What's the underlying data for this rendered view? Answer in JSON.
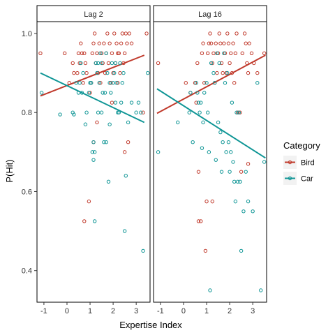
{
  "chart_data": {
    "type": "scatter",
    "xlabel": "Expertise Index",
    "ylabel": "P(Hit)",
    "xlim": [
      -1.3,
      3.6
    ],
    "ylim": [
      0.32,
      1.03
    ],
    "xticks": [
      -1,
      0,
      1,
      2,
      3
    ],
    "yticks": [
      0.4,
      0.6,
      0.8,
      1.0
    ],
    "ytick_labels": [
      "0.4",
      "0.6",
      "0.8",
      "1.0"
    ],
    "legend": {
      "title": "Category",
      "position": "right",
      "entries": [
        {
          "label": "Bird",
          "color": "#C0392B"
        },
        {
          "label": "Car",
          "color": "#0E9595"
        }
      ]
    },
    "panels": [
      {
        "strip": "Lag 2",
        "series": [
          {
            "name": "Bird",
            "color": "#C0392B",
            "fit": {
              "x": [
                -1.15,
                3.35
              ],
              "y": [
                0.842,
                0.945
              ]
            },
            "points": [
              [
                -1.15,
                0.95
              ],
              [
                -0.1,
                0.95
              ],
              [
                0.1,
                0.875
              ],
              [
                0.25,
                0.925
              ],
              [
                0.3,
                0.9
              ],
              [
                0.45,
                0.9
              ],
              [
                0.5,
                0.95
              ],
              [
                0.55,
                0.925
              ],
              [
                0.6,
                0.975
              ],
              [
                0.65,
                0.95
              ],
              [
                0.7,
                0.875
              ],
              [
                0.75,
                0.95
              ],
              [
                0.8,
                0.925
              ],
              [
                0.85,
                0.9
              ],
              [
                0.75,
                0.525
              ],
              [
                0.95,
                0.575
              ],
              [
                1.0,
                0.85
              ],
              [
                1.05,
                0.875
              ],
              [
                1.1,
                0.95
              ],
              [
                1.15,
                0.975
              ],
              [
                1.2,
                1.0
              ],
              [
                1.25,
                0.925
              ],
              [
                1.3,
                0.95
              ],
              [
                1.35,
                0.9
              ],
              [
                1.4,
                0.975
              ],
              [
                1.45,
                0.875
              ],
              [
                1.5,
                0.95
              ],
              [
                1.55,
                0.925
              ],
              [
                1.6,
                0.975
              ],
              [
                1.65,
                0.9
              ],
              [
                1.7,
                0.95
              ],
              [
                1.75,
                1.0
              ],
              [
                1.8,
                0.925
              ],
              [
                1.85,
                0.975
              ],
              [
                1.9,
                0.875
              ],
              [
                1.95,
                0.95
              ],
              [
                2.0,
                0.9
              ],
              [
                2.05,
                1.0
              ],
              [
                2.1,
                0.925
              ],
              [
                2.15,
                0.975
              ],
              [
                2.2,
                0.875
              ],
              [
                2.25,
                0.95
              ],
              [
                2.3,
                0.9
              ],
              [
                2.35,
                0.975
              ],
              [
                2.4,
                1.0
              ],
              [
                2.45,
                0.925
              ],
              [
                2.5,
                0.95
              ],
              [
                2.55,
                1.0
              ],
              [
                2.6,
                0.975
              ],
              [
                2.65,
                0.725
              ],
              [
                2.7,
                1.0
              ],
              [
                2.5,
                0.7
              ],
              [
                1.95,
                0.825
              ],
              [
                3.3,
                0.8
              ],
              [
                3.45,
                1.0
              ],
              [
                1.3,
                0.775
              ],
              [
                2.2,
                0.95
              ],
              [
                2.8,
                0.975
              ],
              [
                1.15,
                0.725
              ]
            ]
          },
          {
            "name": "Car",
            "color": "#0E9595",
            "fit": {
              "x": [
                -1.15,
                3.35
              ],
              "y": [
                0.9,
                0.775
              ]
            },
            "points": [
              [
                -1.1,
                0.85
              ],
              [
                -0.3,
                0.795
              ],
              [
                0.25,
                0.8
              ],
              [
                0.3,
                0.795
              ],
              [
                0.4,
                0.875
              ],
              [
                0.5,
                0.85
              ],
              [
                0.55,
                0.875
              ],
              [
                0.6,
                0.925
              ],
              [
                0.65,
                0.85
              ],
              [
                0.7,
                0.9
              ],
              [
                0.8,
                0.77
              ],
              [
                0.85,
                0.8
              ],
              [
                0.95,
                0.85
              ],
              [
                1.05,
                0.875
              ],
              [
                1.1,
                0.7
              ],
              [
                1.15,
                0.725
              ],
              [
                1.2,
                0.525
              ],
              [
                1.25,
                0.925
              ],
              [
                1.3,
                0.9
              ],
              [
                1.35,
                0.925
              ],
              [
                1.4,
                0.875
              ],
              [
                1.45,
                0.95
              ],
              [
                1.5,
                0.8
              ],
              [
                1.55,
                0.85
              ],
              [
                1.6,
                0.725
              ],
              [
                1.7,
                0.725
              ],
              [
                1.75,
                0.9
              ],
              [
                1.8,
                0.625
              ],
              [
                1.85,
                0.875
              ],
              [
                1.9,
                0.85
              ],
              [
                2.0,
                0.875
              ],
              [
                2.05,
                0.9
              ],
              [
                2.1,
                0.825
              ],
              [
                2.15,
                0.875
              ],
              [
                2.2,
                0.8
              ],
              [
                2.3,
                0.925
              ],
              [
                2.35,
                0.825
              ],
              [
                2.45,
                0.9
              ],
              [
                2.5,
                0.5
              ],
              [
                2.55,
                0.64
              ],
              [
                2.65,
                0.775
              ],
              [
                2.8,
                0.825
              ],
              [
                3.0,
                0.8
              ],
              [
                3.1,
                0.825
              ],
              [
                3.2,
                0.8
              ],
              [
                3.3,
                0.45
              ],
              [
                3.5,
                0.9
              ],
              [
                1.2,
                0.7
              ],
              [
                1.35,
                0.8
              ],
              [
                1.65,
                0.85
              ],
              [
                2.1,
                0.925
              ],
              [
                2.4,
                0.875
              ],
              [
                1.0,
                0.875
              ],
              [
                1.95,
                0.925
              ],
              [
                2.25,
                0.8
              ],
              [
                1.5,
                0.925
              ],
              [
                1.15,
                0.68
              ],
              [
                1.7,
                0.95
              ],
              [
                1.85,
                0.77
              ]
            ]
          }
        ]
      },
      {
        "strip": "Lag 16",
        "series": [
          {
            "name": "Bird",
            "color": "#C0392B",
            "fit": {
              "x": [
                -1.15,
                3.55
              ],
              "y": [
                0.798,
                0.945
              ]
            },
            "points": [
              [
                -1.1,
                0.925
              ],
              [
                0.1,
                0.875
              ],
              [
                0.3,
                0.85
              ],
              [
                0.5,
                0.875
              ],
              [
                0.55,
                0.825
              ],
              [
                0.6,
                0.925
              ],
              [
                0.65,
                0.525
              ],
              [
                0.75,
                0.525
              ],
              [
                0.8,
                0.95
              ],
              [
                0.85,
                0.975
              ],
              [
                0.9,
                0.875
              ],
              [
                0.95,
                0.45
              ],
              [
                1.0,
                0.575
              ],
              [
                1.05,
                0.95
              ],
              [
                1.1,
                0.975
              ],
              [
                1.15,
                1.0
              ],
              [
                1.2,
                0.975
              ],
              [
                1.25,
                0.925
              ],
              [
                1.3,
                0.95
              ],
              [
                1.35,
                0.875
              ],
              [
                1.4,
                0.975
              ],
              [
                1.45,
                0.9
              ],
              [
                1.5,
                0.95
              ],
              [
                1.55,
                1.0
              ],
              [
                1.6,
                0.975
              ],
              [
                1.65,
                0.925
              ],
              [
                1.7,
                0.9
              ],
              [
                1.75,
                0.975
              ],
              [
                1.8,
                0.95
              ],
              [
                1.85,
                0.9
              ],
              [
                1.9,
                1.0
              ],
              [
                1.95,
                0.975
              ],
              [
                2.0,
                0.925
              ],
              [
                2.05,
                0.95
              ],
              [
                2.1,
                0.9
              ],
              [
                2.15,
                0.975
              ],
              [
                2.2,
                0.875
              ],
              [
                2.25,
                0.95
              ],
              [
                2.3,
                1.0
              ],
              [
                2.35,
                0.8
              ],
              [
                2.45,
                0.8
              ],
              [
                2.55,
                0.95
              ],
              [
                2.65,
                1.0
              ],
              [
                2.7,
                0.975
              ],
              [
                2.75,
                0.925
              ],
              [
                2.8,
                0.9
              ],
              [
                2.85,
                0.975
              ],
              [
                2.95,
                0.95
              ],
              [
                3.05,
                0.925
              ],
              [
                3.2,
                0.9
              ],
              [
                3.5,
                0.95
              ],
              [
                2.5,
                0.65
              ],
              [
                2.8,
                0.67
              ],
              [
                1.25,
                0.575
              ],
              [
                0.65,
                0.65
              ]
            ]
          },
          {
            "name": "Car",
            "color": "#0E9595",
            "fit": {
              "x": [
                -1.15,
                3.55
              ],
              "y": [
                0.86,
                0.685
              ]
            },
            "points": [
              [
                -1.1,
                0.7
              ],
              [
                -0.25,
                0.775
              ],
              [
                0.25,
                0.8
              ],
              [
                0.3,
                0.85
              ],
              [
                0.4,
                0.725
              ],
              [
                0.55,
                0.875
              ],
              [
                0.6,
                0.85
              ],
              [
                0.65,
                0.825
              ],
              [
                0.7,
                0.8
              ],
              [
                0.75,
                0.825
              ],
              [
                0.8,
                0.71
              ],
              [
                0.85,
                0.775
              ],
              [
                0.9,
                0.85
              ],
              [
                1.0,
                0.875
              ],
              [
                1.05,
                0.8
              ],
              [
                1.1,
                0.7
              ],
              [
                1.15,
                0.35
              ],
              [
                1.2,
                0.925
              ],
              [
                1.3,
                0.9
              ],
              [
                1.35,
                0.875
              ],
              [
                1.4,
                0.68
              ],
              [
                1.45,
                0.95
              ],
              [
                1.5,
                0.775
              ],
              [
                1.55,
                0.925
              ],
              [
                1.6,
                0.75
              ],
              [
                1.7,
                0.725
              ],
              [
                1.75,
                0.95
              ],
              [
                1.8,
                0.875
              ],
              [
                1.85,
                0.7
              ],
              [
                1.9,
                0.9
              ],
              [
                2.0,
                0.65
              ],
              [
                2.1,
                0.825
              ],
              [
                2.2,
                0.625
              ],
              [
                2.25,
                0.575
              ],
              [
                2.3,
                0.8
              ],
              [
                2.35,
                0.625
              ],
              [
                2.45,
                0.625
              ],
              [
                2.5,
                0.45
              ],
              [
                2.6,
                0.55
              ],
              [
                2.7,
                0.65
              ],
              [
                2.8,
                0.575
              ],
              [
                3.0,
                0.55
              ],
              [
                3.2,
                0.875
              ],
              [
                3.35,
                0.35
              ],
              [
                3.5,
                0.675
              ],
              [
                2.15,
                0.675
              ],
              [
                2.4,
                0.8
              ],
              [
                1.95,
                0.725
              ],
              [
                1.65,
                0.65
              ],
              [
                2.05,
                0.7
              ]
            ]
          }
        ]
      }
    ]
  }
}
